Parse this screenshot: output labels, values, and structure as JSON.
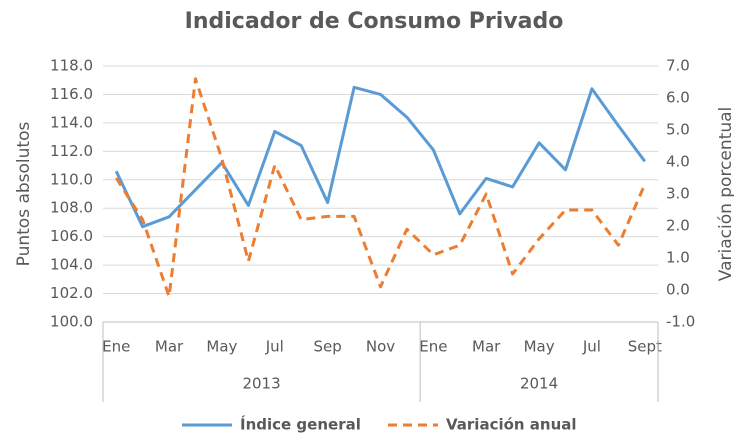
{
  "chart_data": {
    "type": "line",
    "title": "Indicador de Consumo Privado",
    "ylabel": "Puntos absolutos",
    "y2label": "Variación porcentual",
    "categories": [
      "Ene",
      null,
      "Mar",
      null,
      "May",
      null,
      "Jul",
      null,
      "Sep",
      null,
      "Nov",
      null,
      "Ene",
      null,
      "Mar",
      null,
      "May",
      null,
      "Jul",
      null,
      "Sept"
    ],
    "groups": [
      "2013",
      "2014"
    ],
    "series": [
      {
        "name": "Índice general",
        "color": "#5b9bd5",
        "axis": "y",
        "values": [
          110.6,
          106.7,
          107.4,
          109.3,
          111.2,
          108.2,
          113.4,
          112.4,
          108.4,
          116.5,
          116.0,
          114.4,
          112.1,
          107.6,
          110.1,
          109.5,
          112.6,
          110.7,
          116.4,
          113.8,
          111.3
        ]
      },
      {
        "name": "Variación anual",
        "color": "#ed7d31",
        "axis": "y2",
        "dashed": true,
        "values": [
          3.5,
          2.2,
          -0.2,
          6.6,
          4.1,
          0.9,
          3.9,
          2.2,
          2.3,
          2.3,
          0.1,
          1.9,
          1.1,
          1.4,
          3.0,
          0.5,
          1.6,
          2.5,
          2.5,
          1.4,
          3.3
        ]
      }
    ],
    "ylim": [
      100,
      118
    ],
    "yticks": [
      {
        "value": 100,
        "label": "100.0"
      },
      {
        "value": 102,
        "label": "102.0"
      },
      {
        "value": 104,
        "label": "104.0"
      },
      {
        "value": 106,
        "label": "106.0"
      },
      {
        "value": 108,
        "label": "108.0"
      },
      {
        "value": 110,
        "label": "110.0"
      },
      {
        "value": 112,
        "label": "112.0"
      },
      {
        "value": 114,
        "label": "114.0"
      },
      {
        "value": 116,
        "label": "116.0"
      },
      {
        "value": 118,
        "label": "118.0"
      }
    ],
    "y2lim": [
      -1,
      7
    ],
    "y2ticks": [
      {
        "value": -1,
        "label": "-1.0"
      },
      {
        "value": 0,
        "label": "0.0"
      },
      {
        "value": 1,
        "label": "1.0"
      },
      {
        "value": 2,
        "label": "2.0"
      },
      {
        "value": 3,
        "label": "3.0"
      },
      {
        "value": 4,
        "label": "4.0"
      },
      {
        "value": 5,
        "label": "5.0"
      },
      {
        "value": 6,
        "label": "6.0"
      },
      {
        "value": 7,
        "label": "7.0"
      }
    ],
    "grid": true,
    "legend": "bottom"
  }
}
